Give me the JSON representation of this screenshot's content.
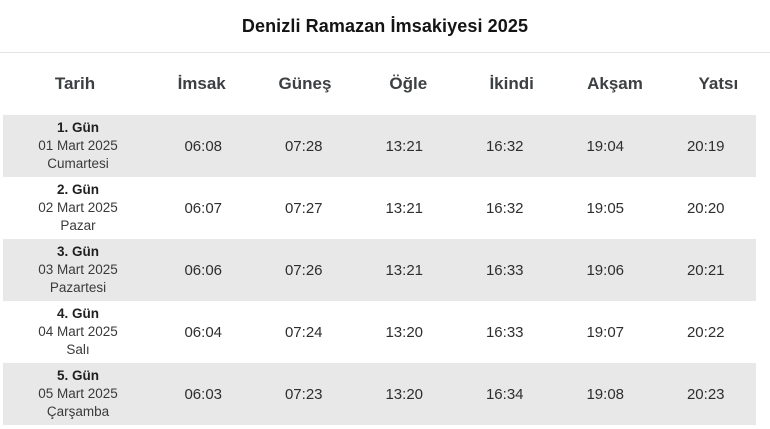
{
  "page": {
    "title": "Denizli Ramazan İmsakiyesi 2025"
  },
  "table": {
    "columns": [
      "Tarih",
      "İmsak",
      "Güneş",
      "Öğle",
      "İkindi",
      "Akşam",
      "Yatsı"
    ],
    "rows": [
      {
        "day": "1. Gün",
        "date": "01 Mart 2025",
        "weekday": "Cumartesi",
        "times": [
          "06:08",
          "07:28",
          "13:21",
          "16:32",
          "19:04",
          "20:19"
        ]
      },
      {
        "day": "2. Gün",
        "date": "02 Mart 2025",
        "weekday": "Pazar",
        "times": [
          "06:07",
          "07:27",
          "13:21",
          "16:32",
          "19:05",
          "20:20"
        ]
      },
      {
        "day": "3. Gün",
        "date": "03 Mart 2025",
        "weekday": "Pazartesi",
        "times": [
          "06:06",
          "07:26",
          "13:21",
          "16:33",
          "19:06",
          "20:21"
        ]
      },
      {
        "day": "4. Gün",
        "date": "04 Mart 2025",
        "weekday": "Salı",
        "times": [
          "06:04",
          "07:24",
          "13:20",
          "16:33",
          "19:07",
          "20:22"
        ]
      },
      {
        "day": "5. Gün",
        "date": "05 Mart 2025",
        "weekday": "Çarşamba",
        "times": [
          "06:03",
          "07:23",
          "13:20",
          "16:34",
          "19:08",
          "20:23"
        ]
      }
    ],
    "colors": {
      "stripe_gray": "#e8e8e8",
      "divider": "#e4e4e4",
      "title_text": "#141414",
      "header_text": "#3c4043",
      "body_text": "#2e2e2e"
    }
  }
}
